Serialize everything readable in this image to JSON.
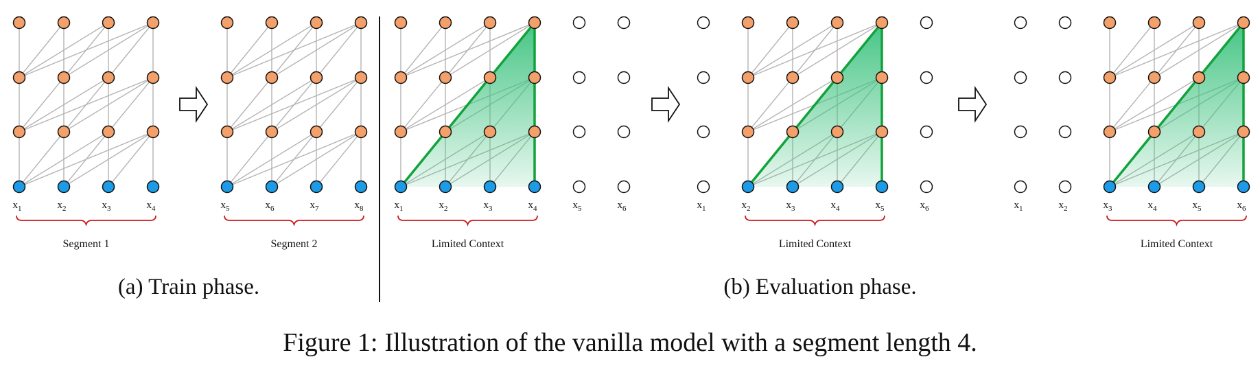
{
  "colors": {
    "hidden_node": "#f4a06a",
    "input_node": "#1e9be6",
    "empty_node": "#ffffff",
    "edge": "#b4b4b4",
    "context_line": "#12a23c",
    "context_fill": "#4cc88a",
    "brace": "#cc1a1a",
    "divider": "#111111"
  },
  "panels": [
    {
      "token_labels": [
        "1",
        "2",
        "3",
        "4"
      ],
      "bracket_label": "Segment 1",
      "active_range": [
        0,
        3
      ],
      "context": false
    },
    {
      "token_labels": [
        "5",
        "6",
        "7",
        "8"
      ],
      "bracket_label": "Segment 2",
      "active_range": [
        0,
        3
      ],
      "context": false
    },
    {
      "token_labels": [
        "1",
        "2",
        "3",
        "4",
        "5",
        "6"
      ],
      "bracket_label": "Limited Context",
      "active_range": [
        0,
        3
      ],
      "context": true
    },
    {
      "token_labels": [
        "1",
        "2",
        "3",
        "4",
        "5",
        "6"
      ],
      "bracket_label": "Limited Context",
      "active_range": [
        1,
        4
      ],
      "context": true
    },
    {
      "token_labels": [
        "1",
        "2",
        "3",
        "4",
        "5",
        "6"
      ],
      "bracket_label": "Limited Context",
      "active_range": [
        2,
        5
      ],
      "context": true
    }
  ],
  "token_prefix": "x",
  "arrow_icon": "hollow-right-arrow-icon",
  "subcaptions": {
    "train": "(a) Train phase.",
    "eval": "(b) Evaluation phase."
  },
  "caption": {
    "prefix": "Figure 1:",
    "text": "Illustration of the vanilla model with a segment length 4."
  }
}
